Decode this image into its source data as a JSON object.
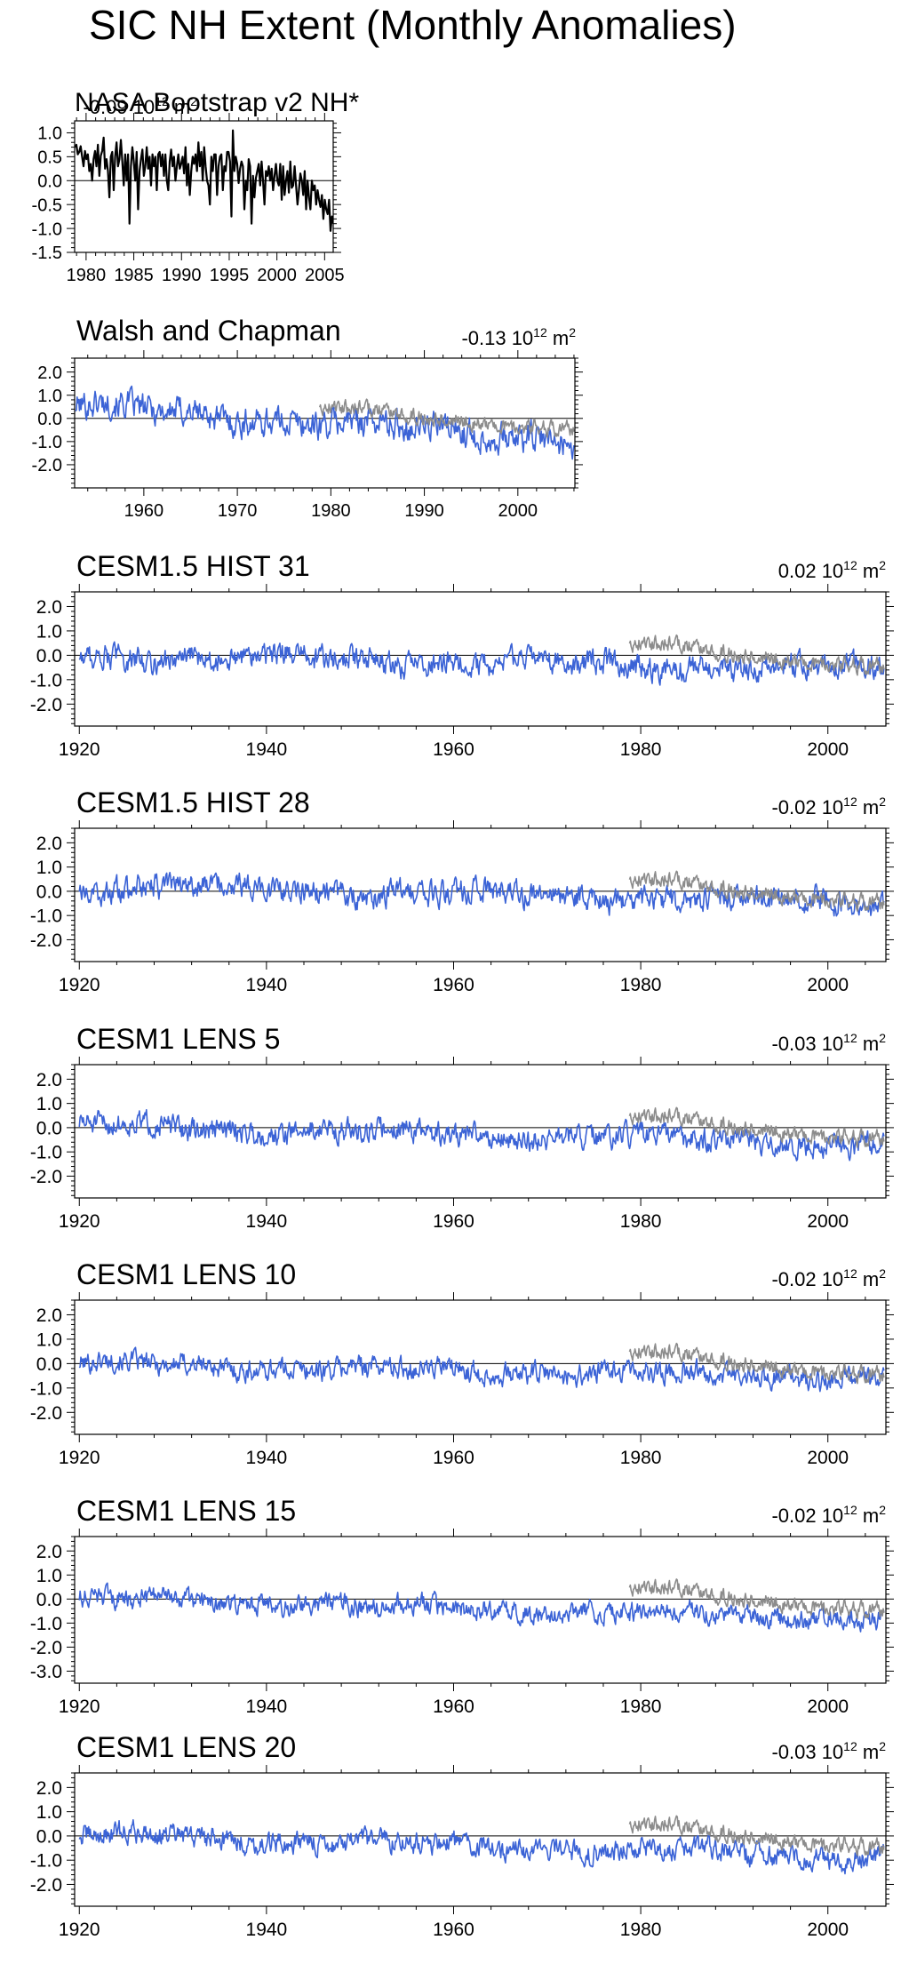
{
  "figure_title": "SIC NH Extent (Monthly Anomalies)",
  "colors": {
    "model": "#3b63d6",
    "obs": "#8c8c8c",
    "nasa": "#000000",
    "zero_line": "#000000"
  },
  "chart_data": [
    {
      "type": "line",
      "title": "NASA Bootstrap v2 NH*",
      "trend_value": "-0.09",
      "trend_unit_base": "10",
      "trend_unit_exp": "12",
      "trend_unit_suffix": "m",
      "trend_unit_suffix_exp": "2",
      "xlim": [
        1978.8,
        2005.9
      ],
      "ylim": [
        -1.5,
        1.25
      ],
      "xticks": [
        1980,
        1985,
        1990,
        1995,
        2000,
        2005
      ],
      "yticks": [
        1.0,
        0.5,
        0.0,
        -0.5,
        -1.0,
        -1.5
      ],
      "ytick_labels": [
        "1.0",
        "0.5",
        "0.0",
        "-0.5",
        "-1.0",
        "-1.5"
      ],
      "series": [
        {
          "role": "nasa",
          "x_start": 1978.83,
          "x_end": 2005.92,
          "y": [
            0.7,
            0.75,
            0.55,
            0.6,
            0.72,
            0.5,
            0.3,
            0.62,
            0.45,
            0.55,
            0.2,
            0.35,
            0.0,
            0.45,
            0.62,
            0.3,
            0.75,
            0.1,
            0.52,
            0.62,
            0.9,
            0.25,
            0.45,
            0.2,
            -0.35,
            0.5,
            0.6,
            -0.2,
            0.5,
            0.8,
            0.3,
            0.45,
            0.85,
            0.4,
            -0.1,
            0.55,
            0.0,
            0.55,
            -0.9,
            0.3,
            0.7,
            0.4,
            0.0,
            0.6,
            -0.6,
            0.2,
            0.45,
            0.65,
            0.1,
            0.3,
            0.7,
            0.25,
            0.5,
            -0.1,
            0.55,
            0.3,
            0.5,
            -0.2,
            0.55,
            0.6,
            0.3,
            0.55,
            0.1,
            0.55,
            0.0,
            -0.2,
            0.4,
            0.65,
            0.3,
            0.5,
            0.0,
            0.3,
            0.55,
            0.25,
            0.35,
            0.5,
            0.15,
            0.7,
            -0.1,
            0.35,
            -0.3,
            0.2,
            0.5,
            0.35,
            0.55,
            0.2,
            0.8,
            0.3,
            0.6,
            0.0,
            0.7,
            0.3,
            0.0,
            -0.1,
            -0.5,
            0.5,
            0.2,
            0.55,
            0.55,
            -0.3,
            0.3,
            0.5,
            0.55,
            -0.2,
            0.3,
            0.2,
            0.6,
            0.6,
            0.4,
            -0.75,
            1.05,
            0.2,
            0.5,
            0.35,
            -0.05,
            0.25,
            0.4,
            0.3,
            -0.6,
            0.0,
            -0.2,
            0.45,
            0.3,
            -0.9,
            0.1,
            -0.35,
            0.05,
            0.2,
            0.35,
            -0.1,
            0.4,
            0.0,
            -0.5,
            0.2,
            0.1,
            0.3,
            0.0,
            0.25,
            -0.2,
            0.1,
            0.35,
            0.0,
            -0.1,
            0.35,
            -0.4,
            0.3,
            -0.3,
            0.0,
            0.2,
            -0.25,
            0.4,
            -0.15,
            -0.1,
            0.3,
            -0.1,
            -0.5,
            -0.2,
            0.15,
            0.0,
            -0.3,
            0.2,
            -0.6,
            0.0,
            -0.35,
            -0.6,
            0.0,
            -0.2,
            -0.1,
            -0.5,
            -0.2,
            -0.4,
            -0.55,
            -0.3,
            -0.8,
            -0.4,
            -0.6,
            -0.7,
            -0.4,
            -1.05,
            -0.75,
            -0.9
          ]
        }
      ]
    },
    {
      "type": "line",
      "title": "Walsh and Chapman",
      "trend_value": "-0.13",
      "trend_unit_base": "10",
      "trend_unit_exp": "12",
      "trend_unit_suffix": "m",
      "trend_unit_suffix_exp": "2",
      "xlim": [
        1952.6,
        2006.1
      ],
      "ylim": [
        -3.0,
        2.6
      ],
      "xticks": [
        1960,
        1970,
        1980,
        1990,
        2000
      ],
      "yticks": [
        2.0,
        1.0,
        0.0,
        -1.0,
        -2.0
      ],
      "ytick_labels": [
        "2.0",
        "1.0",
        "0.0",
        "-1.0",
        "-2.0"
      ],
      "series": [
        {
          "role": "model",
          "x_start": 1952.7,
          "x_end": 2006.0,
          "n": 640,
          "seed": 101,
          "base_start": 0.55,
          "base_end": -0.9,
          "noise": 0.5
        },
        {
          "role": "obs",
          "x_start": 1978.8,
          "x_end": 2006.0,
          "n": 326,
          "seed": 202,
          "base_start": 0.55,
          "base_end": -0.5,
          "noise": 0.28
        }
      ]
    },
    {
      "type": "line",
      "title": "CESM1.5 HIST 31",
      "trend_value": "0.02",
      "trend_unit_base": "10",
      "trend_unit_exp": "12",
      "trend_unit_suffix": "m",
      "trend_unit_suffix_exp": "2",
      "xlim": [
        1919.5,
        2006.2
      ],
      "ylim": [
        -2.9,
        2.6
      ],
      "xticks": [
        1920,
        1940,
        1960,
        1980,
        2000
      ],
      "yticks": [
        2.0,
        1.0,
        0.0,
        -1.0,
        -2.0
      ],
      "ytick_labels": [
        "2.0",
        "1.0",
        "0.0",
        "-1.0",
        "-2.0"
      ],
      "series": [
        {
          "role": "model",
          "x_start": 1920.0,
          "x_end": 2006.0,
          "n": 1032,
          "seed": 311,
          "base_start": 0.0,
          "base_end": -0.6,
          "noise": 0.4
        },
        {
          "role": "obs",
          "x_start": 1978.8,
          "x_end": 2006.0,
          "n": 326,
          "seed": 202,
          "base_start": 0.55,
          "base_end": -0.5,
          "noise": 0.28
        }
      ]
    },
    {
      "type": "line",
      "title": "CESM1.5 HIST 28",
      "trend_value": "-0.02",
      "trend_unit_base": "10",
      "trend_unit_exp": "12",
      "trend_unit_suffix": "m",
      "trend_unit_suffix_exp": "2",
      "xlim": [
        1919.5,
        2006.2
      ],
      "ylim": [
        -2.9,
        2.6
      ],
      "xticks": [
        1920,
        1940,
        1960,
        1980,
        2000
      ],
      "yticks": [
        2.0,
        1.0,
        0.0,
        -1.0,
        -2.0
      ],
      "ytick_labels": [
        "2.0",
        "1.0",
        "0.0",
        "-1.0",
        "-2.0"
      ],
      "series": [
        {
          "role": "model",
          "x_start": 1920.0,
          "x_end": 2006.0,
          "n": 1032,
          "seed": 281,
          "base_start": 0.2,
          "base_end": -0.5,
          "noise": 0.4
        },
        {
          "role": "obs",
          "x_start": 1978.8,
          "x_end": 2006.0,
          "n": 326,
          "seed": 202,
          "base_start": 0.55,
          "base_end": -0.5,
          "noise": 0.28
        }
      ]
    },
    {
      "type": "line",
      "title": "CESM1 LENS 5",
      "trend_value": "-0.03",
      "trend_unit_base": "10",
      "trend_unit_exp": "12",
      "trend_unit_suffix": "m",
      "trend_unit_suffix_exp": "2",
      "xlim": [
        1919.5,
        2006.2
      ],
      "ylim": [
        -2.9,
        2.6
      ],
      "xticks": [
        1920,
        1940,
        1960,
        1980,
        2000
      ],
      "yticks": [
        2.0,
        1.0,
        0.0,
        -1.0,
        -2.0
      ],
      "ytick_labels": [
        "2.0",
        "1.0",
        "0.0",
        "-1.0",
        "-2.0"
      ],
      "series": [
        {
          "role": "model",
          "x_start": 1920.0,
          "x_end": 2006.0,
          "n": 1032,
          "seed": 51,
          "base_start": 0.1,
          "base_end": -0.7,
          "noise": 0.38
        },
        {
          "role": "obs",
          "x_start": 1978.8,
          "x_end": 2006.0,
          "n": 326,
          "seed": 202,
          "base_start": 0.55,
          "base_end": -0.5,
          "noise": 0.28
        }
      ]
    },
    {
      "type": "line",
      "title": "CESM1 LENS 10",
      "trend_value": "-0.02",
      "trend_unit_base": "10",
      "trend_unit_exp": "12",
      "trend_unit_suffix": "m",
      "trend_unit_suffix_exp": "2",
      "xlim": [
        1919.5,
        2006.2
      ],
      "ylim": [
        -2.9,
        2.6
      ],
      "xticks": [
        1920,
        1940,
        1960,
        1980,
        2000
      ],
      "yticks": [
        2.0,
        1.0,
        0.0,
        -1.0,
        -2.0
      ],
      "ytick_labels": [
        "2.0",
        "1.0",
        "0.0",
        "-1.0",
        "-2.0"
      ],
      "series": [
        {
          "role": "model",
          "x_start": 1920.0,
          "x_end": 2006.0,
          "n": 1032,
          "seed": 101,
          "base_start": 0.0,
          "base_end": -0.6,
          "noise": 0.35
        },
        {
          "role": "obs",
          "x_start": 1978.8,
          "x_end": 2006.0,
          "n": 326,
          "seed": 202,
          "base_start": 0.55,
          "base_end": -0.5,
          "noise": 0.28
        }
      ]
    },
    {
      "type": "line",
      "title": "CESM1 LENS 15",
      "trend_value": "-0.02",
      "trend_unit_base": "10",
      "trend_unit_exp": "12",
      "trend_unit_suffix": "m",
      "trend_unit_suffix_exp": "2",
      "xlim": [
        1919.5,
        2006.2
      ],
      "ylim": [
        -3.5,
        2.6
      ],
      "xticks": [
        1920,
        1940,
        1960,
        1980,
        2000
      ],
      "yticks": [
        2.0,
        1.0,
        0.0,
        -1.0,
        -2.0,
        -3.0
      ],
      "ytick_labels": [
        "2.0",
        "1.0",
        "0.0",
        "-1.0",
        "-2.0",
        "-3.0"
      ],
      "series": [
        {
          "role": "model",
          "x_start": 1920.0,
          "x_end": 2006.0,
          "n": 1032,
          "seed": 151,
          "base_start": 0.0,
          "base_end": -0.8,
          "noise": 0.33
        },
        {
          "role": "obs",
          "x_start": 1978.8,
          "x_end": 2006.0,
          "n": 326,
          "seed": 202,
          "base_start": 0.55,
          "base_end": -0.5,
          "noise": 0.28
        }
      ]
    },
    {
      "type": "line",
      "title": "CESM1 LENS 20",
      "trend_value": "-0.03",
      "trend_unit_base": "10",
      "trend_unit_exp": "12",
      "trend_unit_suffix": "m",
      "trend_unit_suffix_exp": "2",
      "xlim": [
        1919.5,
        2006.2
      ],
      "ylim": [
        -2.9,
        2.6
      ],
      "xticks": [
        1920,
        1940,
        1960,
        1980,
        2000
      ],
      "yticks": [
        2.0,
        1.0,
        0.0,
        -1.0,
        -2.0
      ],
      "ytick_labels": [
        "2.0",
        "1.0",
        "0.0",
        "-1.0",
        "-2.0"
      ],
      "series": [
        {
          "role": "model",
          "x_start": 1920.0,
          "x_end": 2006.0,
          "n": 1032,
          "seed": 201,
          "base_start": 0.05,
          "base_end": -0.9,
          "noise": 0.36
        },
        {
          "role": "obs",
          "x_start": 1978.8,
          "x_end": 2006.0,
          "n": 326,
          "seed": 202,
          "base_start": 0.55,
          "base_end": -0.5,
          "noise": 0.28
        }
      ]
    }
  ]
}
